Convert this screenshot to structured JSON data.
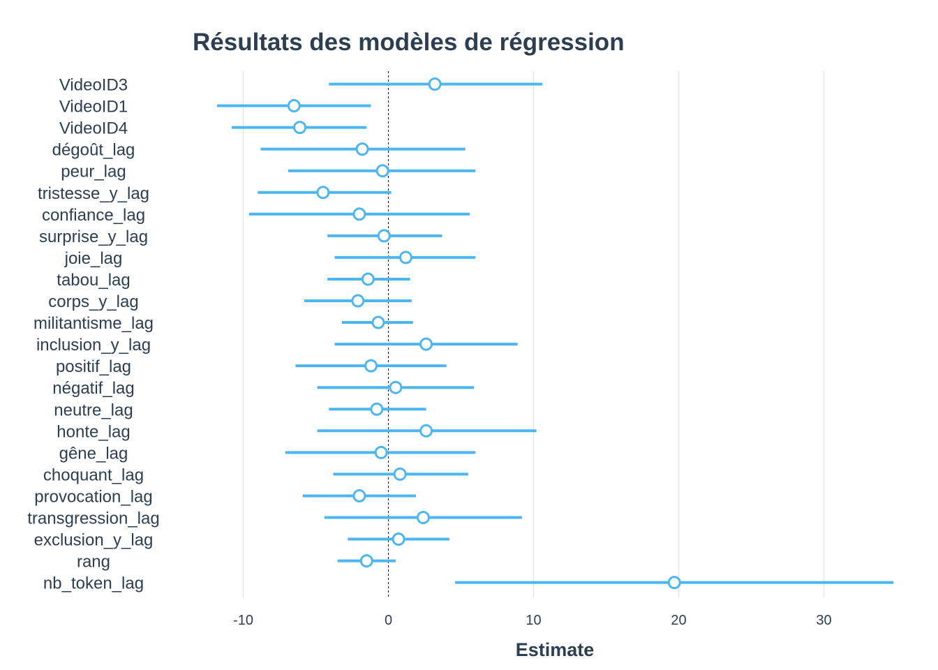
{
  "chart_data": {
    "type": "forest",
    "title": "Résultats des modèles de régression",
    "xlabel": "Estimate",
    "ylabel": "",
    "xlim": [
      -16.5,
      35
    ],
    "x_ticks": [
      -10,
      0,
      10,
      20,
      30
    ],
    "x_tick_labels": [
      "-10",
      "0",
      "10",
      "20",
      "30"
    ],
    "reference_line": 0,
    "grid": "vertical major lines",
    "legend": "none",
    "colors": {
      "series": "#4db6f0",
      "point_fill": "#ffffff",
      "text": "#2c3e50",
      "grid": "#e3e3e3",
      "reference": "#000000"
    },
    "terms": [
      {
        "label": "VideoID3",
        "estimate": 3.2,
        "low": -4.1,
        "high": 10.6
      },
      {
        "label": "VideoID1",
        "estimate": -6.5,
        "low": -11.8,
        "high": -1.2
      },
      {
        "label": "VideoID4",
        "estimate": -6.1,
        "low": -10.8,
        "high": -1.5
      },
      {
        "label": "dégoût_lag",
        "estimate": -1.8,
        "low": -8.8,
        "high": 5.3
      },
      {
        "label": "peur_lag",
        "estimate": -0.4,
        "low": -6.9,
        "high": 6.0
      },
      {
        "label": "tristesse_y_lag",
        "estimate": -4.5,
        "low": -9.0,
        "high": 0.2
      },
      {
        "label": "confiance_lag",
        "estimate": -2.0,
        "low": -9.6,
        "high": 5.6
      },
      {
        "label": "surprise_y_lag",
        "estimate": -0.3,
        "low": -4.2,
        "high": 3.7
      },
      {
        "label": "joie_lag",
        "estimate": 1.2,
        "low": -3.7,
        "high": 6.0
      },
      {
        "label": "tabou_lag",
        "estimate": -1.4,
        "low": -4.2,
        "high": 1.5
      },
      {
        "label": "corps_y_lag",
        "estimate": -2.1,
        "low": -5.8,
        "high": 1.6
      },
      {
        "label": "militantisme_lag",
        "estimate": -0.7,
        "low": -3.2,
        "high": 1.7
      },
      {
        "label": "inclusion_y_lag",
        "estimate": 2.6,
        "low": -3.7,
        "high": 8.9
      },
      {
        "label": "positif_lag",
        "estimate": -1.2,
        "low": -6.4,
        "high": 4.0
      },
      {
        "label": "négatif_lag",
        "estimate": 0.5,
        "low": -4.9,
        "high": 5.9
      },
      {
        "label": "neutre_lag",
        "estimate": -0.8,
        "low": -4.1,
        "high": 2.6
      },
      {
        "label": "honte_lag",
        "estimate": 2.6,
        "low": -4.9,
        "high": 10.2
      },
      {
        "label": "gêne_lag",
        "estimate": -0.5,
        "low": -7.1,
        "high": 6.0
      },
      {
        "label": "choquant_lag",
        "estimate": 0.8,
        "low": -3.8,
        "high": 5.5
      },
      {
        "label": "provocation_lag",
        "estimate": -2.0,
        "low": -5.9,
        "high": 1.9
      },
      {
        "label": "transgression_lag",
        "estimate": 2.4,
        "low": -4.4,
        "high": 9.2
      },
      {
        "label": "exclusion_y_lag",
        "estimate": 0.7,
        "low": -2.8,
        "high": 4.2
      },
      {
        "label": "rang",
        "estimate": -1.5,
        "low": -3.5,
        "high": 0.5
      },
      {
        "label": "nb_token_lag",
        "estimate": 19.7,
        "low": 4.6,
        "high": 34.8
      }
    ]
  }
}
